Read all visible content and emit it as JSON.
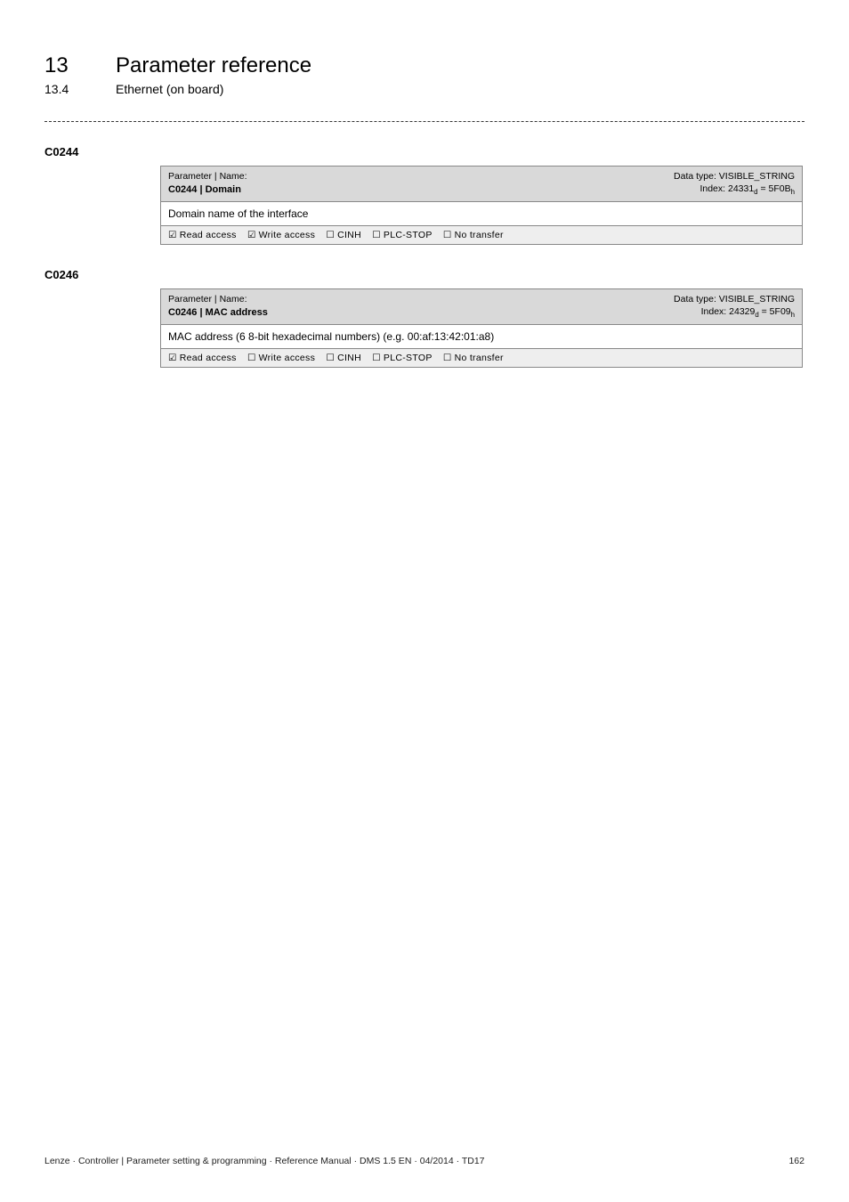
{
  "header": {
    "chapter_num": "13",
    "chapter_title": "Parameter reference",
    "section_num": "13.4",
    "section_title": "Ethernet (on board)"
  },
  "params": [
    {
      "code": "C0244",
      "label": "Parameter | Name:",
      "name": "C0244 | Domain",
      "datatype": "Data type: VISIBLE_STRING",
      "index_html": "Index: 24331<sub>d</sub> = 5F0B<sub>h</sub>",
      "description": "Domain name of the interface",
      "access": {
        "read": "Read access",
        "write": "Write access",
        "write_checked": true,
        "cinh": "CINH",
        "plcstop": "PLC-STOP",
        "notransfer": "No transfer"
      }
    },
    {
      "code": "C0246",
      "label": "Parameter | Name:",
      "name": "C0246 | MAC address",
      "datatype": "Data type: VISIBLE_STRING",
      "index_html": "Index: 24329<sub>d</sub> = 5F09<sub>h</sub>",
      "description": "MAC address (6 8-bit hexadecimal numbers) (e.g. 00:af:13:42:01:a8)",
      "access": {
        "read": "Read access",
        "write": "Write access",
        "write_checked": false,
        "cinh": "CINH",
        "plcstop": "PLC-STOP",
        "notransfer": "No transfer"
      }
    }
  ],
  "footer": {
    "left": "Lenze · Controller |  Parameter setting & programming · Reference Manual · DMS 1.5 EN · 04/2014 · TD17",
    "page": "162"
  },
  "colors": {
    "header_bg": "#d9d9d9",
    "row_bg": "#ffffff",
    "access_bg": "#eeeeee",
    "border": "#888888"
  }
}
